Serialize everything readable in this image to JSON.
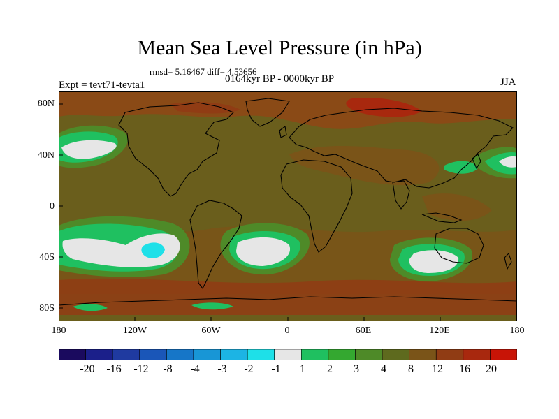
{
  "title": "Mean Sea Level Pressure (in hPa)",
  "stats": "rmsd= 5.16467 diff= 4.53656",
  "period": "0164kyr BP - 0000kyr BP",
  "experiment": "Expt = tevt71-tevta1",
  "season": "JJA",
  "axes": {
    "lat_labels": [
      "80N",
      "40N",
      "0",
      "40S",
      "80S"
    ],
    "lon_labels": [
      "180",
      "120W",
      "60W",
      "0",
      "60E",
      "120E",
      "180"
    ]
  },
  "colorbar": {
    "labels": [
      "-20",
      "-16",
      "-12",
      "-8",
      "-4",
      "-3",
      "-2",
      "-1",
      "1",
      "2",
      "3",
      "4",
      "8",
      "12",
      "16",
      "20"
    ],
    "colors": [
      "#1a0a5e",
      "#1b1f8a",
      "#1f3aa0",
      "#1a56b8",
      "#1676c8",
      "#1896d6",
      "#1cb4e4",
      "#1ee0e8",
      "#e6e6e6",
      "#1fc060",
      "#34a830",
      "#4e8a28",
      "#5e6a1e",
      "#7a5418",
      "#903c14",
      "#a8280e",
      "#c81406"
    ]
  },
  "map": {
    "background": "#6a5e1c",
    "ocean_warm": "#8a4a16",
    "land_outline": "#000000"
  }
}
